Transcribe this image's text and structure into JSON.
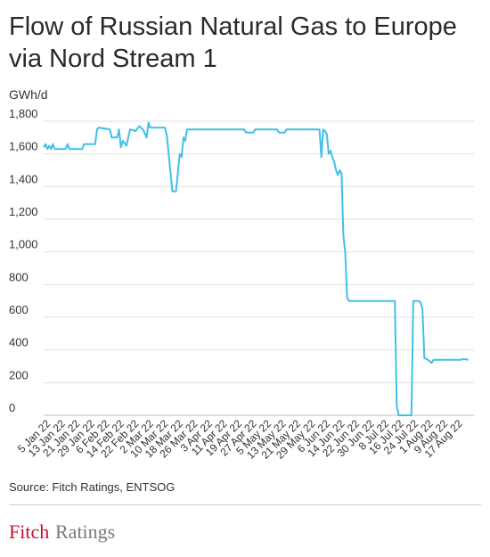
{
  "title": "Flow of Russian Natural Gas to Europe via Nord Stream 1",
  "unit_label": "GWh/d",
  "source": "Source: Fitch Ratings, ENTSOG",
  "logo_text": "FitchRatings",
  "colors": {
    "line": "#3fc0ea",
    "grid": "#e0e0e0",
    "text": "#333333",
    "logo": "#c8102e"
  },
  "chart_data": {
    "type": "line",
    "title": "Flow of Russian Natural Gas to Europe via Nord Stream 1",
    "ylabel": "GWh/d",
    "xlabel": "",
    "ylim": [
      0,
      1800
    ],
    "yticks": [
      0,
      200,
      400,
      600,
      800,
      1000,
      1200,
      1400,
      1600,
      1800
    ],
    "ytick_labels": [
      "0",
      "200",
      "400",
      "600",
      "800",
      "1,000",
      "1,200",
      "1,400",
      "1,600",
      "1,800"
    ],
    "xlim": [
      "2022-01-01",
      "2022-08-23"
    ],
    "xticks": [
      "2022-01-05",
      "2022-01-13",
      "2022-01-21",
      "2022-01-29",
      "2022-02-06",
      "2022-02-14",
      "2022-02-22",
      "2022-03-02",
      "2022-03-10",
      "2022-03-18",
      "2022-03-26",
      "2022-04-03",
      "2022-04-11",
      "2022-04-19",
      "2022-04-27",
      "2022-05-05",
      "2022-05-13",
      "2022-05-21",
      "2022-05-29",
      "2022-06-06",
      "2022-06-14",
      "2022-06-22",
      "2022-06-30",
      "2022-07-08",
      "2022-07-16",
      "2022-07-24",
      "2022-08-01",
      "2022-08-09",
      "2022-08-17"
    ],
    "xtick_labels": [
      "5 Jan 22",
      "13 Jan 22",
      "21 Jan 22",
      "29 Jan 22",
      "6 Feb 22",
      "14 Feb 22",
      "22 Feb 22",
      "2 Mar 22",
      "10 Mar 22",
      "18 Mar 22",
      "26 Mar 22",
      "3 Apr 22",
      "11 Apr 22",
      "19 Apr 22",
      "27 Apr 22",
      "5 May 22",
      "13 May 22",
      "21 May 22",
      "29 May 22",
      "6 Jun 22",
      "14 Jun 22",
      "22 Jun 22",
      "30 Jun 22",
      "8 Jul 22",
      "16 Jul 22",
      "24 Jul 22",
      "1 Aug 22",
      "9 Aug 22",
      "17 Aug 22"
    ],
    "grid": true,
    "series": [
      {
        "color": "#3fc0ea",
        "points": [
          [
            "2022-01-01",
            1640
          ],
          [
            "2022-01-02",
            1660
          ],
          [
            "2022-01-03",
            1630
          ],
          [
            "2022-01-04",
            1650
          ],
          [
            "2022-01-05",
            1630
          ],
          [
            "2022-01-06",
            1660
          ],
          [
            "2022-01-07",
            1630
          ],
          [
            "2022-01-12",
            1630
          ],
          [
            "2022-01-13",
            1630
          ],
          [
            "2022-01-14",
            1660
          ],
          [
            "2022-01-15",
            1630
          ],
          [
            "2022-01-22",
            1630
          ],
          [
            "2022-01-23",
            1660
          ],
          [
            "2022-01-29",
            1660
          ],
          [
            "2022-01-30",
            1750
          ],
          [
            "2022-01-31",
            1760
          ],
          [
            "2022-02-06",
            1750
          ],
          [
            "2022-02-07",
            1700
          ],
          [
            "2022-02-10",
            1700
          ],
          [
            "2022-02-11",
            1750
          ],
          [
            "2022-02-12",
            1640
          ],
          [
            "2022-02-13",
            1680
          ],
          [
            "2022-02-15",
            1650
          ],
          [
            "2022-02-17",
            1750
          ],
          [
            "2022-02-20",
            1740
          ],
          [
            "2022-02-22",
            1770
          ],
          [
            "2022-02-24",
            1750
          ],
          [
            "2022-02-26",
            1700
          ],
          [
            "2022-02-27",
            1790
          ],
          [
            "2022-02-28",
            1760
          ],
          [
            "2022-03-08",
            1760
          ],
          [
            "2022-03-09",
            1710
          ],
          [
            "2022-03-12",
            1370
          ],
          [
            "2022-03-14",
            1370
          ],
          [
            "2022-03-16",
            1600
          ],
          [
            "2022-03-17",
            1580
          ],
          [
            "2022-03-18",
            1700
          ],
          [
            "2022-03-19",
            1680
          ],
          [
            "2022-03-20",
            1750
          ],
          [
            "2022-03-25",
            1750
          ],
          [
            "2022-04-01",
            1750
          ],
          [
            "2022-04-20",
            1750
          ],
          [
            "2022-04-21",
            1730
          ],
          [
            "2022-04-25",
            1730
          ],
          [
            "2022-04-26",
            1750
          ],
          [
            "2022-05-08",
            1750
          ],
          [
            "2022-05-09",
            1730
          ],
          [
            "2022-05-12",
            1730
          ],
          [
            "2022-05-13",
            1750
          ],
          [
            "2022-05-31",
            1750
          ],
          [
            "2022-06-01",
            1580
          ],
          [
            "2022-06-02",
            1750
          ],
          [
            "2022-06-03",
            1740
          ],
          [
            "2022-06-04",
            1720
          ],
          [
            "2022-06-05",
            1600
          ],
          [
            "2022-06-06",
            1620
          ],
          [
            "2022-06-07",
            1580
          ],
          [
            "2022-06-08",
            1550
          ],
          [
            "2022-06-09",
            1500
          ],
          [
            "2022-06-10",
            1470
          ],
          [
            "2022-06-11",
            1500
          ],
          [
            "2022-06-12",
            1480
          ],
          [
            "2022-06-13",
            1100
          ],
          [
            "2022-06-14",
            1000
          ],
          [
            "2022-06-15",
            720
          ],
          [
            "2022-06-16",
            700
          ],
          [
            "2022-07-10",
            700
          ],
          [
            "2022-07-11",
            700
          ],
          [
            "2022-07-12",
            60
          ],
          [
            "2022-07-13",
            0
          ],
          [
            "2022-07-20",
            0
          ],
          [
            "2022-07-21",
            700
          ],
          [
            "2022-07-24",
            700
          ],
          [
            "2022-07-25",
            690
          ],
          [
            "2022-07-26",
            650
          ],
          [
            "2022-07-27",
            350
          ],
          [
            "2022-07-29",
            340
          ],
          [
            "2022-07-31",
            320
          ],
          [
            "2022-08-01",
            340
          ],
          [
            "2022-08-16",
            340
          ],
          [
            "2022-08-17",
            345
          ],
          [
            "2022-08-20",
            340
          ]
        ]
      }
    ]
  }
}
